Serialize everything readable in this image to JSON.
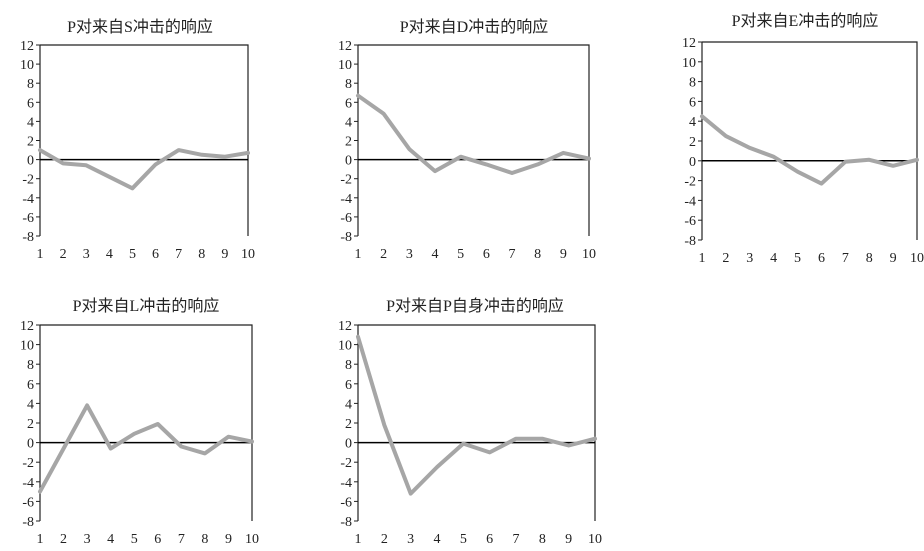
{
  "colors": {
    "line": "#a6a6a6",
    "axis": "#222222",
    "zero_line": "#000000"
  },
  "chart_data": [
    {
      "type": "line",
      "title": "P对来自S冲击的响应",
      "x": [
        1,
        2,
        3,
        4,
        5,
        6,
        7,
        8,
        9,
        10
      ],
      "values": [
        1,
        -0.4,
        -0.6,
        -1.8,
        -3,
        -0.5,
        1,
        0.5,
        0.3,
        0.7
      ],
      "ylim": [
        -8,
        12
      ],
      "yticks": [
        12,
        10,
        8,
        6,
        4,
        2,
        0,
        -2,
        -4,
        -6,
        -8
      ],
      "xticks": [
        1,
        2,
        3,
        4,
        5,
        6,
        7,
        8,
        9,
        10
      ],
      "grid": false,
      "zero_line": true
    },
    {
      "type": "line",
      "title": "P对来自D冲击的响应",
      "x": [
        1,
        2,
        3,
        4,
        5,
        6,
        7,
        8,
        9,
        10
      ],
      "values": [
        6.7,
        4.8,
        1.1,
        -1.2,
        0.3,
        -0.5,
        -1.4,
        -0.5,
        0.7,
        0.1
      ],
      "ylim": [
        -8,
        12
      ],
      "yticks": [
        12,
        10,
        8,
        6,
        4,
        2,
        0,
        -2,
        -4,
        -6,
        -8
      ],
      "xticks": [
        1,
        2,
        3,
        4,
        5,
        6,
        7,
        8,
        9,
        10
      ],
      "grid": false,
      "zero_line": true
    },
    {
      "type": "line",
      "title": "P对来自E冲击的响应",
      "x": [
        1,
        2,
        3,
        4,
        5,
        6,
        7,
        8,
        9,
        10
      ],
      "values": [
        4.5,
        2.5,
        1.3,
        0.4,
        -1.1,
        -2.3,
        -0.1,
        0.1,
        -0.5,
        0.1
      ],
      "ylim": [
        -8,
        12
      ],
      "yticks": [
        12,
        10,
        8,
        6,
        4,
        2,
        0,
        -2,
        -4,
        -6,
        -8
      ],
      "xticks": [
        1,
        2,
        3,
        4,
        5,
        6,
        7,
        8,
        9,
        10
      ],
      "grid": false,
      "zero_line": true
    },
    {
      "type": "line",
      "title": "P对来自L冲击的响应",
      "x": [
        1,
        2,
        3,
        4,
        5,
        6,
        7,
        8,
        9,
        10
      ],
      "values": [
        -5,
        -0.6,
        3.8,
        -0.6,
        0.9,
        1.9,
        -0.4,
        -1.1,
        0.6,
        0.1
      ],
      "ylim": [
        -8,
        12
      ],
      "yticks": [
        12,
        10,
        8,
        6,
        4,
        2,
        0,
        -2,
        -4,
        -6,
        -8
      ],
      "xticks": [
        1,
        2,
        3,
        4,
        5,
        6,
        7,
        8,
        9,
        10
      ],
      "grid": false,
      "zero_line": true
    },
    {
      "type": "line",
      "title": "P对来自P自身冲击的响应",
      "x": [
        1,
        2,
        3,
        4,
        5,
        6,
        7,
        8,
        9,
        10
      ],
      "values": [
        10.8,
        1.8,
        -5.2,
        -2.5,
        -0.1,
        -1,
        0.4,
        0.4,
        -0.3,
        0.4
      ],
      "ylim": [
        -8,
        12
      ],
      "yticks": [
        12,
        10,
        8,
        6,
        4,
        2,
        0,
        -2,
        -4,
        -6,
        -8
      ],
      "xticks": [
        1,
        2,
        3,
        4,
        5,
        6,
        7,
        8,
        9,
        10
      ],
      "grid": false,
      "zero_line": true
    }
  ]
}
